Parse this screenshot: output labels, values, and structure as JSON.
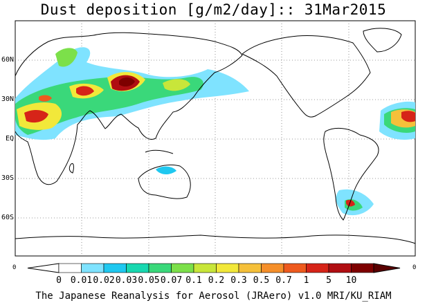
{
  "title": "Dust deposition [g/m2/day]:: 31Mar2015",
  "footer": "The Japanese Reanalysis for Aerosol (JRAero) v1.0 MRI/KU_RIAM",
  "lat_labels": [
    "60N",
    "30N",
    "EQ",
    "30S",
    "60S"
  ],
  "lon_edge_labels": {
    "left": "0",
    "right": "0"
  },
  "colorbar": {
    "labels": [
      "0",
      "0.01",
      "0.02",
      "0.03",
      "0.05",
      "0.07",
      "0.1",
      "0.2",
      "0.3",
      "0.5",
      "0.7",
      "1",
      "5",
      "10"
    ],
    "colors": [
      "#ffffff",
      "#7fe3ff",
      "#1fc8f0",
      "#18d8b0",
      "#3ad87a",
      "#7ce04a",
      "#c8e63a",
      "#f2e83a",
      "#f5c03a",
      "#f58f2a",
      "#ee5a1e",
      "#d62418",
      "#b00e12",
      "#7e0000"
    ],
    "over_color": "#5a0000",
    "under_color": "#ffffff"
  },
  "map": {
    "projection": "cylindrical equidistant, centred on 180",
    "land_outline_color": "#000000",
    "background": "#ffffff"
  }
}
